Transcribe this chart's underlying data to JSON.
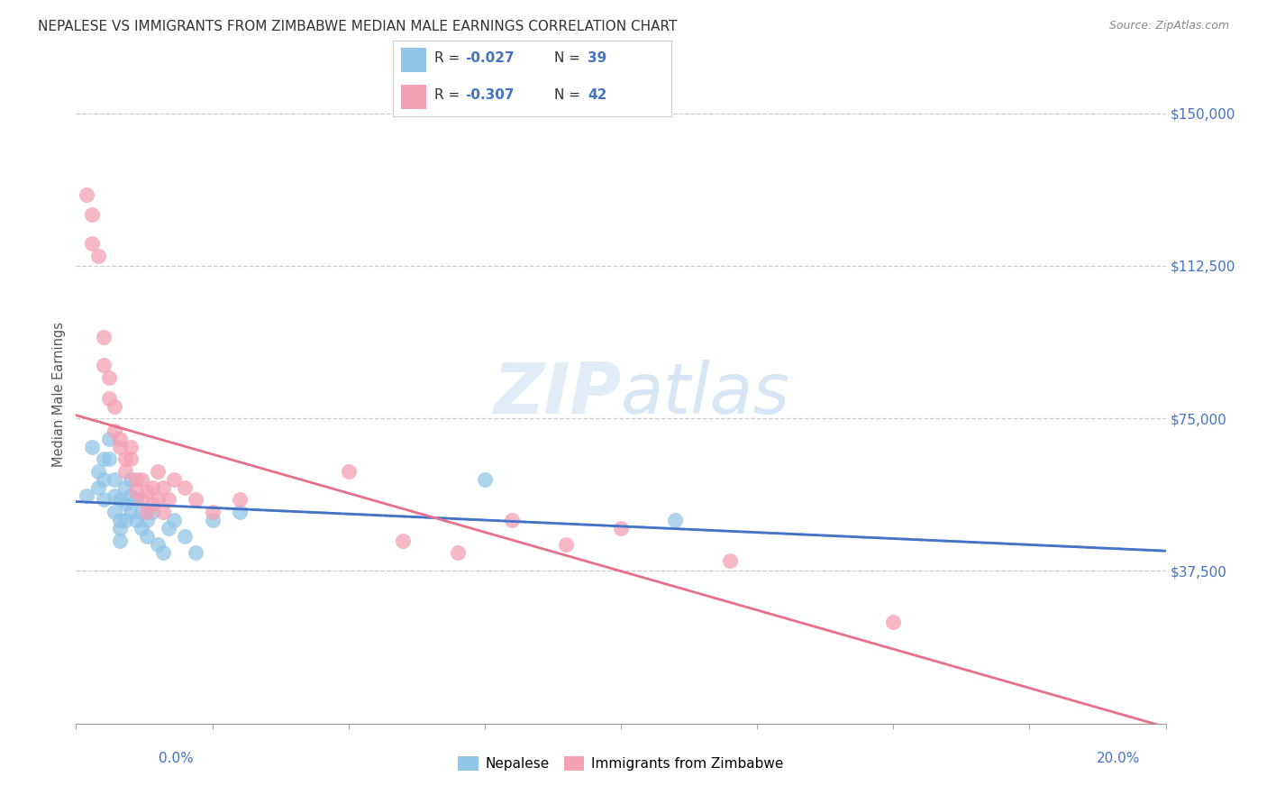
{
  "title": "NEPALESE VS IMMIGRANTS FROM ZIMBABWE MEDIAN MALE EARNINGS CORRELATION CHART",
  "source": "Source: ZipAtlas.com",
  "ylabel": "Median Male Earnings",
  "yticks": [
    0,
    37500,
    75000,
    112500,
    150000
  ],
  "ytick_labels": [
    "",
    "$37,500",
    "$75,000",
    "$112,500",
    "$150,000"
  ],
  "xlim": [
    0.0,
    0.2
  ],
  "ylim": [
    0,
    162000
  ],
  "blue_color": "#92C5E8",
  "pink_color": "#F4A0B5",
  "trend_blue": "#4472C4",
  "trend_pink": "#E8708A",
  "nepalese_x": [
    0.002,
    0.003,
    0.004,
    0.004,
    0.005,
    0.005,
    0.005,
    0.006,
    0.006,
    0.007,
    0.007,
    0.007,
    0.008,
    0.008,
    0.008,
    0.008,
    0.009,
    0.009,
    0.009,
    0.01,
    0.01,
    0.01,
    0.011,
    0.011,
    0.012,
    0.012,
    0.013,
    0.013,
    0.014,
    0.015,
    0.016,
    0.017,
    0.018,
    0.02,
    0.022,
    0.025,
    0.03,
    0.075,
    0.11
  ],
  "nepalese_y": [
    56000,
    68000,
    62000,
    58000,
    65000,
    60000,
    55000,
    70000,
    65000,
    60000,
    56000,
    52000,
    55000,
    50000,
    48000,
    45000,
    58000,
    54000,
    50000,
    60000,
    56000,
    52000,
    55000,
    50000,
    52000,
    48000,
    50000,
    46000,
    52000,
    44000,
    42000,
    48000,
    50000,
    46000,
    42000,
    50000,
    52000,
    60000,
    50000
  ],
  "zimbabwe_x": [
    0.002,
    0.003,
    0.003,
    0.004,
    0.005,
    0.005,
    0.006,
    0.006,
    0.007,
    0.007,
    0.008,
    0.008,
    0.009,
    0.009,
    0.01,
    0.01,
    0.011,
    0.011,
    0.012,
    0.012,
    0.013,
    0.013,
    0.014,
    0.014,
    0.015,
    0.015,
    0.016,
    0.016,
    0.017,
    0.018,
    0.02,
    0.022,
    0.025,
    0.03,
    0.05,
    0.06,
    0.07,
    0.08,
    0.09,
    0.1,
    0.12,
    0.15
  ],
  "zimbabwe_y": [
    130000,
    125000,
    118000,
    115000,
    95000,
    88000,
    80000,
    85000,
    78000,
    72000,
    70000,
    68000,
    65000,
    62000,
    68000,
    65000,
    60000,
    57000,
    60000,
    55000,
    57000,
    52000,
    58000,
    54000,
    62000,
    55000,
    58000,
    52000,
    55000,
    60000,
    58000,
    55000,
    52000,
    55000,
    62000,
    45000,
    42000,
    50000,
    44000,
    48000,
    40000,
    25000
  ]
}
